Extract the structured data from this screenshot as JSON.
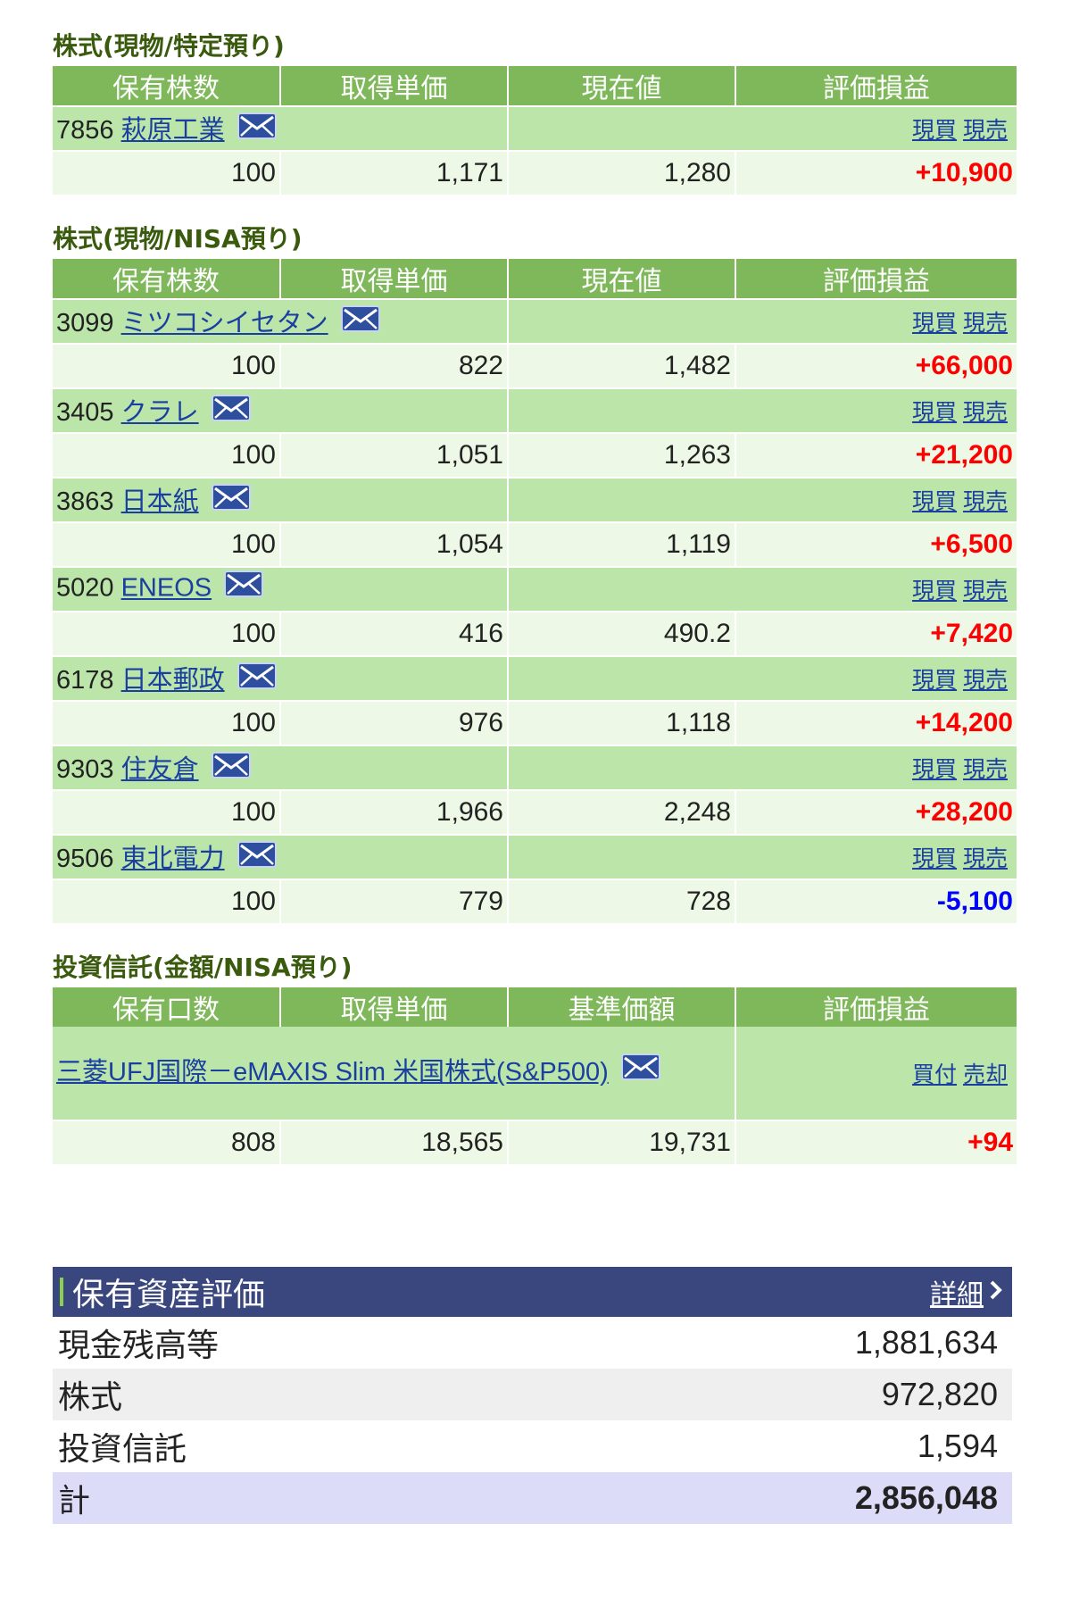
{
  "sections": {
    "tokutei": {
      "title": "株式(現物/特定預り)",
      "headers": [
        "保有株数",
        "取得単価",
        "現在値",
        "評価損益"
      ],
      "rows": [
        {
          "code": "7856",
          "name": "萩原工業",
          "actions": [
            "現買",
            "現売"
          ],
          "qty": "100",
          "cost": "1,171",
          "price": "1,280",
          "pl": "+10,900"
        }
      ]
    },
    "nisa": {
      "title": "株式(現物/NISA預り)",
      "headers": [
        "保有株数",
        "取得単価",
        "現在値",
        "評価損益"
      ],
      "rows": [
        {
          "code": "3099",
          "name": "ミツコシイセタン",
          "actions": [
            "現買",
            "現売"
          ],
          "qty": "100",
          "cost": "822",
          "price": "1,482",
          "pl": "+66,000"
        },
        {
          "code": "3405",
          "name": "クラレ",
          "actions": [
            "現買",
            "現売"
          ],
          "qty": "100",
          "cost": "1,051",
          "price": "1,263",
          "pl": "+21,200"
        },
        {
          "code": "3863",
          "name": "日本紙",
          "actions": [
            "現買",
            "現売"
          ],
          "qty": "100",
          "cost": "1,054",
          "price": "1,119",
          "pl": "+6,500"
        },
        {
          "code": "5020",
          "name": "ENEOS",
          "actions": [
            "現買",
            "現売"
          ],
          "qty": "100",
          "cost": "416",
          "price": "490.2",
          "pl": "+7,420"
        },
        {
          "code": "6178",
          "name": "日本郵政",
          "actions": [
            "現買",
            "現売"
          ],
          "qty": "100",
          "cost": "976",
          "price": "1,118",
          "pl": "+14,200"
        },
        {
          "code": "9303",
          "name": "住友倉",
          "actions": [
            "現買",
            "現売"
          ],
          "qty": "100",
          "cost": "1,966",
          "price": "2,248",
          "pl": "+28,200"
        },
        {
          "code": "9506",
          "name": "東北電力",
          "actions": [
            "現買",
            "現売"
          ],
          "qty": "100",
          "cost": "779",
          "price": "728",
          "pl": "-5,100"
        }
      ]
    },
    "fund": {
      "title": "投資信託(金額/NISA預り)",
      "headers": [
        "保有口数",
        "取得単価",
        "基準価額",
        "評価損益"
      ],
      "name": "三菱UFJ国際－eMAXIS Slim 米国株式(S&P500)",
      "actions": [
        "買付",
        "売却"
      ],
      "qty": "808",
      "cost": "18,565",
      "price": "19,731",
      "pl": "+94"
    }
  },
  "assets": {
    "title": "保有資産評価",
    "detail_link": "詳細",
    "rows": [
      {
        "label": "現金残高等",
        "value": "1,881,634"
      },
      {
        "label": "株式",
        "value": "972,820"
      },
      {
        "label": "投資信託",
        "value": "1,594"
      }
    ],
    "total": {
      "label": "計",
      "value": "2,856,048"
    }
  },
  "colors": {
    "header_green": "#7fb85b",
    "name_row_green": "#bce6a9",
    "value_row_green": "#edf8e6",
    "title_olive": "#3a5a0e",
    "link_blue": "#1a3fa0",
    "gain_red": "#ff0000",
    "loss_blue": "#0000ff",
    "assets_header_navy": "#3a477e"
  },
  "icons": {
    "mail": "mail-icon",
    "chevron": "chevron-right-icon"
  }
}
